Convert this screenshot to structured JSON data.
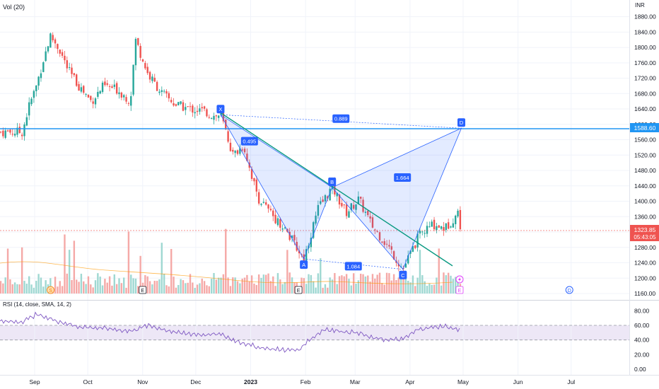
{
  "header": {
    "volume_label": "Vol (20)",
    "currency": "INR"
  },
  "price_axis": {
    "ticks": [
      "1880.00",
      "1840.00",
      "1800.00",
      "1760.00",
      "1720.00",
      "1680.00",
      "1640.00",
      "1600.00",
      "1560.00",
      "1520.00",
      "1480.00",
      "1440.00",
      "1400.00",
      "1360.00",
      "1320.00",
      "1280.00",
      "1240.00",
      "1200.00",
      "1160.00"
    ],
    "current_price": "1323.85",
    "countdown": "05:43:05",
    "level_label": "1588.60"
  },
  "rsi": {
    "label": "RSI (14, close, SMA, 14, 2)",
    "ticks": [
      "80.00",
      "60.00",
      "40.00",
      "20.00",
      "0.00"
    ]
  },
  "time_axis": [
    "Sep",
    "Oct",
    "Nov",
    "Dec",
    "2023",
    "Feb",
    "Mar",
    "Apr",
    "May",
    "Jun",
    "Jul"
  ],
  "pattern": {
    "points": [
      "X",
      "A",
      "B",
      "C",
      "D"
    ],
    "ratios": [
      "0.495",
      "1.664",
      "0.889",
      "1.084"
    ]
  },
  "event_markers": [
    "S",
    "E",
    "E",
    "E",
    "D"
  ],
  "colors": {
    "up": "#26a69a",
    "down": "#ef5350",
    "pattern": "#2962ff",
    "level": "#2196f3",
    "trend": "#089981",
    "rsi": "#7e57c2"
  },
  "chart_data": {
    "type": "candlestick",
    "price_range": [
      1160,
      1880
    ],
    "rsi_range": [
      0,
      80
    ],
    "horizontal_level": 1588.6,
    "current_price": 1323.85,
    "harmonic_points": [
      {
        "label": "X",
        "date": "2022-12-15",
        "price": 1625
      },
      {
        "label": "A",
        "date": "2023-01-31",
        "price": 1250
      },
      {
        "label": "B",
        "date": "2023-02-16",
        "price": 1436
      },
      {
        "label": "C",
        "date": "2023-03-28",
        "price": 1223
      },
      {
        "label": "D",
        "date": "2023-04-30",
        "price": 1590
      }
    ],
    "price_path": [
      [
        "2022-08-25",
        1580
      ],
      [
        "2022-08-29",
        1650
      ],
      [
        "2022-09-02",
        1700
      ],
      [
        "2022-09-06",
        1770
      ],
      [
        "2022-09-10",
        1830
      ],
      [
        "2022-09-15",
        1795
      ],
      [
        "2022-09-20",
        1740
      ],
      [
        "2022-09-26",
        1700
      ],
      [
        "2022-10-03",
        1660
      ],
      [
        "2022-10-10",
        1700
      ],
      [
        "2022-10-18",
        1690
      ],
      [
        "2022-10-25",
        1660
      ],
      [
        "2022-10-28",
        1820
      ],
      [
        "2022-11-04",
        1730
      ],
      [
        "2022-11-12",
        1680
      ],
      [
        "2022-11-20",
        1650
      ],
      [
        "2022-11-28",
        1640
      ],
      [
        "2022-12-05",
        1635
      ],
      [
        "2022-12-12",
        1620
      ],
      [
        "2022-12-15",
        1625
      ],
      [
        "2022-12-22",
        1520
      ],
      [
        "2022-12-28",
        1545
      ],
      [
        "2023-01-05",
        1410
      ],
      [
        "2023-01-12",
        1370
      ],
      [
        "2023-01-20",
        1330
      ],
      [
        "2023-01-31",
        1250
      ],
      [
        "2023-02-08",
        1380
      ],
      [
        "2023-02-16",
        1436
      ],
      [
        "2023-02-24",
        1370
      ],
      [
        "2023-03-03",
        1405
      ],
      [
        "2023-03-10",
        1340
      ],
      [
        "2023-03-20",
        1280
      ],
      [
        "2023-03-28",
        1223
      ],
      [
        "2023-04-06",
        1310
      ],
      [
        "2023-04-14",
        1340
      ],
      [
        "2023-04-21",
        1330
      ],
      [
        "2023-04-28",
        1370
      ],
      [
        "2023-04-30",
        1323.85
      ]
    ],
    "rsi_path": [
      [
        "2022-08-25",
        65
      ],
      [
        "2022-09-02",
        75
      ],
      [
        "2022-09-15",
        65
      ],
      [
        "2022-09-26",
        58
      ],
      [
        "2022-10-10",
        56
      ],
      [
        "2022-10-25",
        52
      ],
      [
        "2022-11-04",
        60
      ],
      [
        "2022-11-20",
        50
      ],
      [
        "2022-12-05",
        47
      ],
      [
        "2022-12-15",
        48
      ],
      [
        "2022-12-22",
        40
      ],
      [
        "2023-01-05",
        30
      ],
      [
        "2023-01-15",
        27
      ],
      [
        "2023-01-28",
        26
      ],
      [
        "2023-02-03",
        40
      ],
      [
        "2023-02-12",
        55
      ],
      [
        "2023-02-20",
        52
      ],
      [
        "2023-03-03",
        50
      ],
      [
        "2023-03-10",
        43
      ],
      [
        "2023-03-20",
        40
      ],
      [
        "2023-03-28",
        41
      ],
      [
        "2023-04-06",
        55
      ],
      [
        "2023-04-20",
        59
      ],
      [
        "2023-04-30",
        53
      ]
    ]
  }
}
